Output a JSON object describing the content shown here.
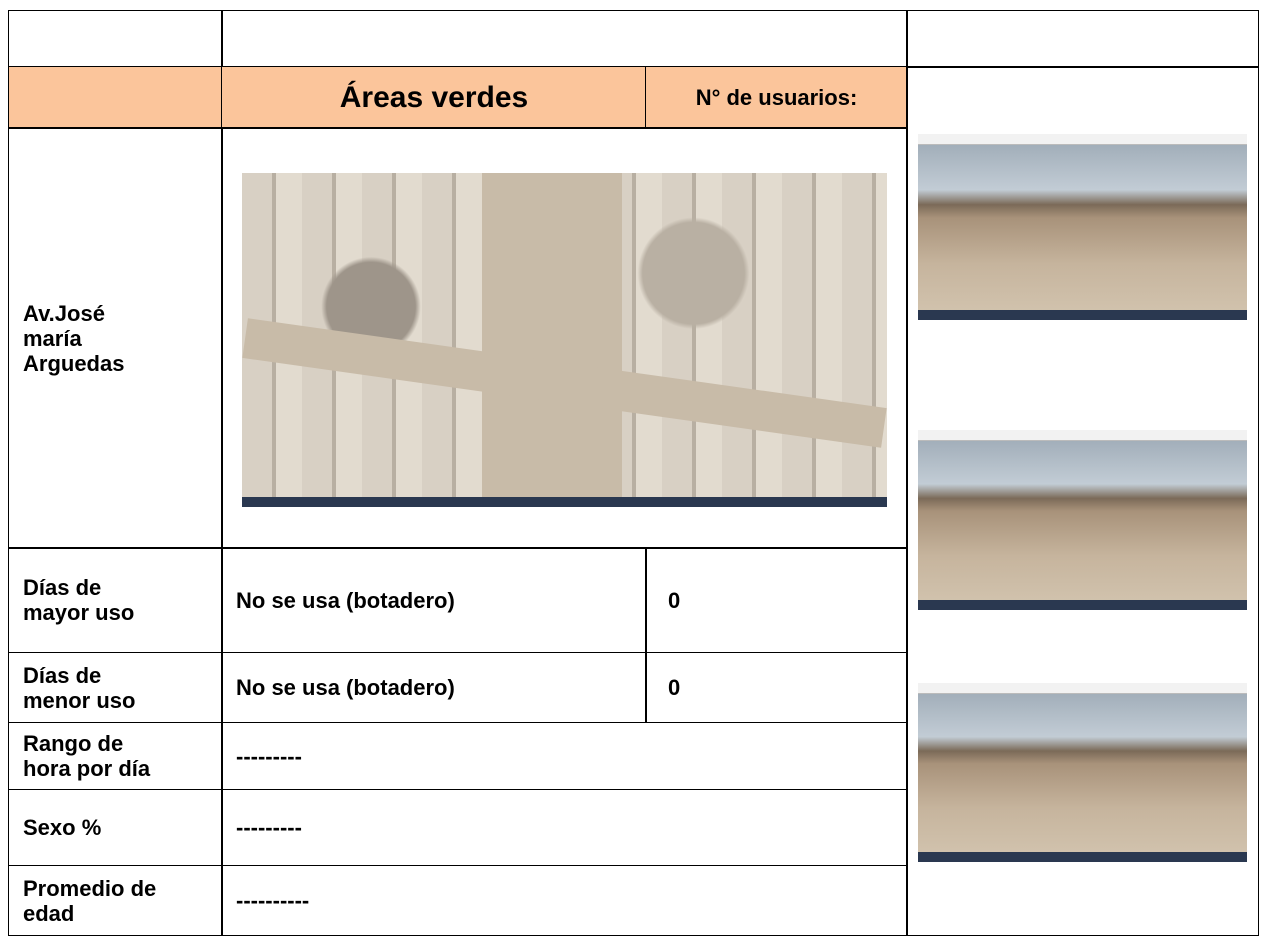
{
  "table": {
    "header": {
      "title": "Áreas verdes",
      "users_label": "N° de usuarios:"
    },
    "location": [
      "Av.José",
      "maría",
      "Arguedas"
    ],
    "rows": [
      {
        "label": [
          "Días de",
          "mayor uso"
        ],
        "value": "No se usa (botadero)",
        "users": "0"
      },
      {
        "label": [
          "Días de",
          "menor uso"
        ],
        "value": "No se usa (botadero)",
        "users": "0"
      },
      {
        "label": [
          "Rango de",
          "hora por día"
        ],
        "value": "---------"
      },
      {
        "label": [
          "Sexo %"
        ],
        "value": "---------"
      },
      {
        "label": [
          "Promedio de",
          "edad"
        ],
        "value": "----------"
      }
    ]
  }
}
